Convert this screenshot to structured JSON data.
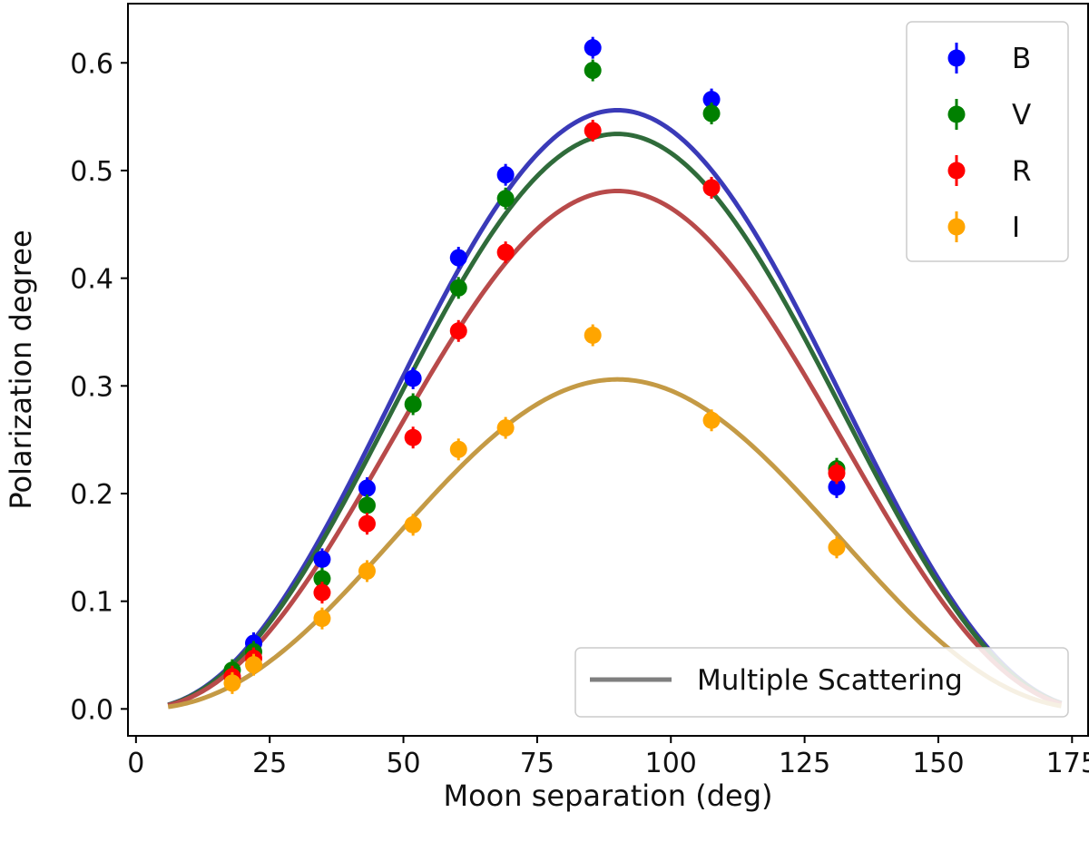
{
  "chart_data": {
    "type": "scatter",
    "title": "",
    "xlabel": "Moon separation (deg)",
    "ylabel": "Polarization degree",
    "xlim": [
      -1.5,
      178
    ],
    "ylim": [
      -0.025,
      0.655
    ],
    "grid": false,
    "x_ticks": [
      0,
      25,
      50,
      75,
      100,
      125,
      150,
      175
    ],
    "x_tick_labels": [
      "0",
      "25",
      "50",
      "75",
      "100",
      "125",
      "150",
      "175"
    ],
    "y_ticks": [
      0.0,
      0.1,
      0.2,
      0.3,
      0.4,
      0.5,
      0.6
    ],
    "y_tick_labels": [
      "0.0",
      "0.1",
      "0.2",
      "0.3",
      "0.4",
      "0.5",
      "0.6"
    ],
    "series": [
      {
        "name": "B",
        "color": "#0000ff",
        "points": [
          {
            "x": 18.0,
            "y": 0.03
          },
          {
            "x": 22.0,
            "y": 0.061
          },
          {
            "x": 34.8,
            "y": 0.139
          },
          {
            "x": 43.2,
            "y": 0.205
          },
          {
            "x": 51.8,
            "y": 0.307
          },
          {
            "x": 60.3,
            "y": 0.419
          },
          {
            "x": 69.1,
            "y": 0.496
          },
          {
            "x": 85.4,
            "y": 0.614
          },
          {
            "x": 107.6,
            "y": 0.566
          },
          {
            "x": 131.0,
            "y": 0.206
          }
        ]
      },
      {
        "name": "V",
        "color": "#008000",
        "points": [
          {
            "x": 18.0,
            "y": 0.036
          },
          {
            "x": 22.0,
            "y": 0.053
          },
          {
            "x": 34.8,
            "y": 0.121
          },
          {
            "x": 43.2,
            "y": 0.189
          },
          {
            "x": 51.8,
            "y": 0.283
          },
          {
            "x": 60.3,
            "y": 0.391
          },
          {
            "x": 69.1,
            "y": 0.474
          },
          {
            "x": 85.4,
            "y": 0.593
          },
          {
            "x": 107.6,
            "y": 0.553
          },
          {
            "x": 131.0,
            "y": 0.223
          }
        ]
      },
      {
        "name": "R",
        "color": "#ff0000",
        "points": [
          {
            "x": 18.0,
            "y": 0.03
          },
          {
            "x": 22.0,
            "y": 0.047
          },
          {
            "x": 34.8,
            "y": 0.108
          },
          {
            "x": 43.2,
            "y": 0.172
          },
          {
            "x": 51.8,
            "y": 0.252
          },
          {
            "x": 60.3,
            "y": 0.351
          },
          {
            "x": 69.1,
            "y": 0.424
          },
          {
            "x": 85.4,
            "y": 0.537
          },
          {
            "x": 107.6,
            "y": 0.484
          },
          {
            "x": 131.0,
            "y": 0.219
          }
        ]
      },
      {
        "name": "I",
        "color": "#ffa500",
        "points": [
          {
            "x": 18.0,
            "y": 0.024
          },
          {
            "x": 22.0,
            "y": 0.041
          },
          {
            "x": 34.8,
            "y": 0.084
          },
          {
            "x": 43.2,
            "y": 0.128
          },
          {
            "x": 51.8,
            "y": 0.171
          },
          {
            "x": 60.3,
            "y": 0.241
          },
          {
            "x": 69.1,
            "y": 0.261
          },
          {
            "x": 85.4,
            "y": 0.347
          },
          {
            "x": 107.6,
            "y": 0.268
          },
          {
            "x": 131.0,
            "y": 0.15
          }
        ]
      }
    ],
    "model_curves": {
      "name": "Multiple Scattering",
      "x_range": [
        6,
        173
      ],
      "peak_x": 90,
      "curves": [
        {
          "band": "B",
          "color": "#3a3ab8",
          "peak": 0.556,
          "falloff": 2.2
        },
        {
          "band": "V",
          "color": "#2f6b3a",
          "peak": 0.534,
          "falloff": 2.2
        },
        {
          "band": "R",
          "color": "#b84a4a",
          "peak": 0.481,
          "falloff": 2.2
        },
        {
          "band": "I",
          "color": "#c49a45",
          "peak": 0.306,
          "falloff": 2.25
        }
      ]
    },
    "legend_series": {
      "placement": "top-right",
      "entries": [
        "B",
        "V",
        "R",
        "I"
      ]
    },
    "legend_model": {
      "placement": "bottom-right",
      "label": "Multiple Scattering",
      "color": "#7f7f7f"
    }
  }
}
